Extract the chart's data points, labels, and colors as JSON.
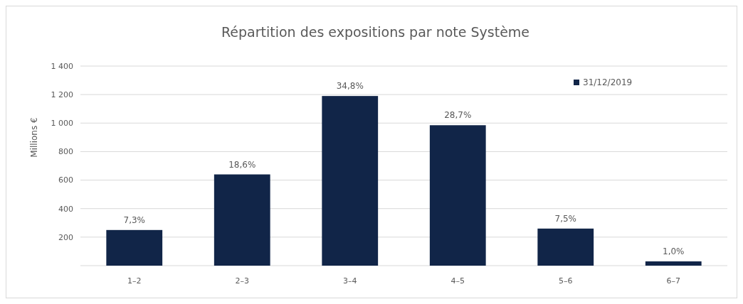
{
  "chart_data": {
    "type": "bar",
    "title": "Répartition des expositions par note Système",
    "ylabel": "Millions €",
    "categories": [
      "1–2",
      "2–3",
      "3–4",
      "4–5",
      "5–6",
      "6–7"
    ],
    "series": [
      {
        "name": "31/12/2019",
        "color": "#112548",
        "values": [
          250,
          640,
          1190,
          985,
          260,
          30
        ]
      }
    ],
    "annotations": [
      {
        "text": "7,3%",
        "x": "1–2",
        "y": 250
      },
      {
        "text": "18,6%",
        "x": "2–3",
        "y": 640
      },
      {
        "text": "34,8%",
        "x": "3–4",
        "y": 1190
      },
      {
        "text": "28,7%",
        "x": "4–5",
        "y": 985
      },
      {
        "text": "7,5%",
        "x": "5–6",
        "y": 260
      },
      {
        "text": "1,0%",
        "x": "6–7",
        "y": 30
      }
    ],
    "ylim": [
      0,
      1400
    ],
    "yticks": [
      {
        "value": 200,
        "label": "200"
      },
      {
        "value": 400,
        "label": "400"
      },
      {
        "value": 600,
        "label": "600"
      },
      {
        "value": 800,
        "label": "800"
      },
      {
        "value": 1000,
        "label": "1 000"
      },
      {
        "value": 1200,
        "label": "1 200"
      },
      {
        "value": 1400,
        "label": "1 400"
      }
    ],
    "grid": "y",
    "legend": "top right"
  }
}
